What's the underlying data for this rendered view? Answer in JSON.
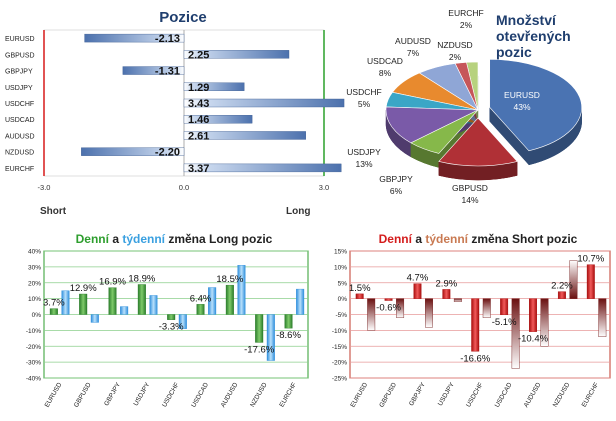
{
  "chart_data": [
    {
      "type": "bar",
      "orientation": "horizontal",
      "title": "Pozice",
      "categories": [
        "EURUSD",
        "GBPUSD",
        "GBPJPY",
        "USDJPY",
        "USDCHF",
        "USDCAD",
        "AUDUSD",
        "NZDUSD",
        "EURCHF"
      ],
      "values": [
        -2.13,
        2.25,
        -1.31,
        1.29,
        3.43,
        1.46,
        2.61,
        -2.2,
        3.37
      ],
      "value_labels": [
        "-2.13",
        "2.25",
        "-1.31",
        "1.29",
        "3.43",
        "1.46",
        "2.61",
        "-2.20",
        "3.37"
      ],
      "xlim": [
        -3.0,
        3.0
      ],
      "ticks": [
        "-3.0",
        "0.0",
        "3.0"
      ],
      "left_label": "Short",
      "right_label": "Long",
      "colors": {
        "bar": "#5b7fb6",
        "bar_light": "#c9d8ee",
        "left_border": "#d71a1a",
        "right_border": "#2ca02c"
      }
    },
    {
      "type": "pie",
      "title": [
        "Množství",
        "otevřených",
        "pozic"
      ],
      "slices": [
        {
          "name": "EURUSD",
          "value": 43,
          "label": "43%",
          "color": "#4a73b2"
        },
        {
          "name": "GBPUSD",
          "value": 14,
          "label": "14%",
          "color": "#b03036"
        },
        {
          "name": "GBPJPY",
          "value": 6,
          "label": "6%",
          "color": "#86b84a"
        },
        {
          "name": "USDJPY",
          "value": 13,
          "label": "13%",
          "color": "#7a5aa8"
        },
        {
          "name": "USDCHF",
          "value": 5,
          "label": "5%",
          "color": "#3ba6c6"
        },
        {
          "name": "USDCAD",
          "value": 8,
          "label": "8%",
          "color": "#e88a2e"
        },
        {
          "name": "AUDUSD",
          "value": 7,
          "label": "7%",
          "color": "#8fa6d6"
        },
        {
          "name": "NZDUSD",
          "value": 2,
          "label": "2%",
          "color": "#c6565a"
        },
        {
          "name": "EURCHF",
          "value": 2,
          "label": "2%",
          "color": "#b7d27e"
        }
      ]
    },
    {
      "type": "bar",
      "title_parts": [
        {
          "text": "Denní",
          "color": "#2e9e2e"
        },
        {
          "text": " a ",
          "color": "#222222"
        },
        {
          "text": "týdenní",
          "color": "#3aa0e0"
        },
        {
          "text": " změna Long pozic",
          "color": "#222222"
        }
      ],
      "categories": [
        "EURUSD",
        "GBPUSD",
        "GBPJPY",
        "USDJPY",
        "USDCHF",
        "USDCAD",
        "AUDUSD",
        "NZDUSD",
        "EURCHF"
      ],
      "series": [
        {
          "values": [
            3.7,
            12.9,
            16.9,
            18.9,
            -3.3,
            6.4,
            18.5,
            -17.6,
            -8.6
          ],
          "color": "#3d9a3d"
        },
        {
          "values": [
            15,
            -5,
            5,
            12,
            -9,
            17,
            31,
            -29,
            16
          ],
          "color": "#59b0f2"
        }
      ],
      "labels": [
        "3.7%",
        "12.9%",
        "16.9%",
        "18.9%",
        "-3.3%",
        "6.4%",
        "18.5%",
        "-17.6%",
        "-8.6%"
      ],
      "ylim": [
        -40,
        40
      ],
      "yticks": [
        "40%",
        "30%",
        "20%",
        "10%",
        "0%",
        "-10%",
        "-20%",
        "-30%",
        "-40%"
      ]
    },
    {
      "type": "bar",
      "title_parts": [
        {
          "text": "Denní",
          "color": "#d41c1c"
        },
        {
          "text": " a ",
          "color": "#222222"
        },
        {
          "text": "týdenní",
          "color": "#c97a52"
        },
        {
          "text": " změna Short pozic",
          "color": "#222222"
        }
      ],
      "categories": [
        "EURUSD",
        "GBPUSD",
        "GBPJPY",
        "USDJPY",
        "USDCHF",
        "USDCAD",
        "AUDUSD",
        "NZDUSD",
        "EURCHF"
      ],
      "series": [
        {
          "values": [
            1.5,
            -0.6,
            4.7,
            2.9,
            -16.6,
            -5.1,
            -10.4,
            2.2,
            10.7
          ],
          "color": "#d41c1c"
        },
        {
          "values": [
            -10,
            -6,
            -9,
            -1,
            -6,
            -22,
            -15,
            12,
            -12
          ],
          "color": "#7a1a1a"
        }
      ],
      "labels": [
        "1.5%",
        "-0.6%",
        "4.7%",
        "2.9%",
        "-16.6%",
        "-5.1%",
        "-10.4%",
        "2.2%",
        "10.7%"
      ],
      "ylim": [
        -25,
        15
      ],
      "yticks": [
        "15%",
        "10%",
        "5%",
        "0%",
        "-5%",
        "-10%",
        "-15%",
        "-20%",
        "-25%"
      ]
    }
  ]
}
